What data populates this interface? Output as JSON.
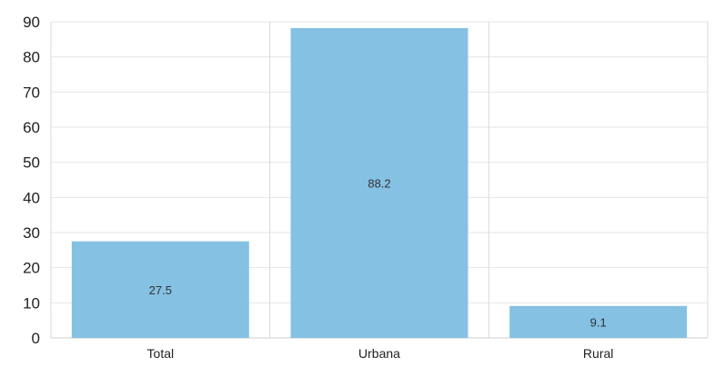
{
  "chart_data": {
    "type": "bar",
    "title": "",
    "xlabel": "",
    "ylabel": "",
    "categories": [
      "Total",
      "Urbana",
      "Rural"
    ],
    "values": [
      27.5,
      88.2,
      9.1
    ],
    "data_labels": [
      "27.5",
      "88.2",
      "9.1"
    ],
    "ylim": [
      0,
      90
    ],
    "yticks": [
      0,
      10,
      20,
      30,
      40,
      50,
      60,
      70,
      80,
      90
    ],
    "grid": true,
    "legend": "none",
    "colors": {
      "bar": "#84c1e3",
      "grid": "#e6e6e6",
      "separator": "#d9d9d9",
      "axis": "#cfcfcf",
      "text": "#222222"
    }
  }
}
